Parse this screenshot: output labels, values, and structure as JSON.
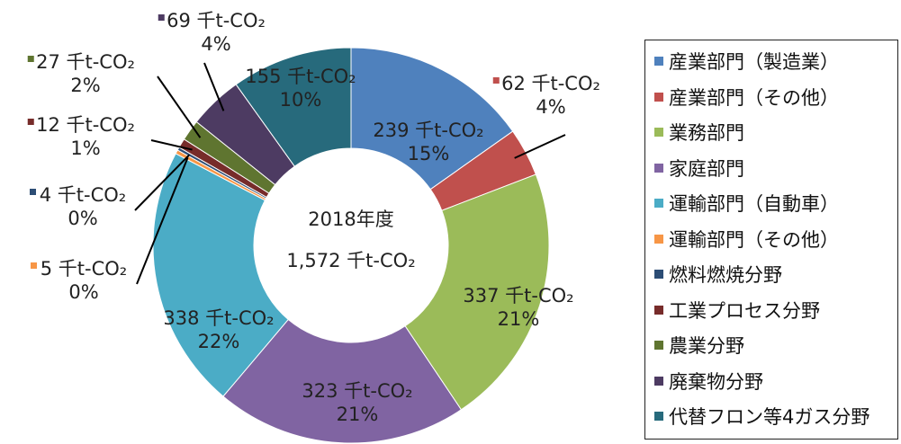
{
  "chart_data": {
    "type": "pie",
    "center_text": [
      "2018年度",
      "1,572 千t-CO₂"
    ],
    "unit": "千t-CO₂",
    "legend_position": "right",
    "slices": [
      {
        "name": "産業部門（製造業）",
        "value": 239,
        "percent": "15%",
        "color": "#4f81bd"
      },
      {
        "name": "産業部門（その他）",
        "value": 62,
        "percent": "4%",
        "color": "#c0504d"
      },
      {
        "name": "業務部門",
        "value": 337,
        "percent": "21%",
        "color": "#9bbb59"
      },
      {
        "name": "家庭部門",
        "value": 323,
        "percent": "21%",
        "color": "#8064a2"
      },
      {
        "name": "運輸部門（自動車）",
        "value": 338,
        "percent": "22%",
        "color": "#4bacc6"
      },
      {
        "name": "運輸部門（その他）",
        "value": 5,
        "percent": "0%",
        "color": "#f79646"
      },
      {
        "name": "燃料燃焼分野",
        "value": 4,
        "percent": "0%",
        "color": "#2c4d75"
      },
      {
        "name": "工業プロセス分野",
        "value": 12,
        "percent": "1%",
        "color": "#772c2a"
      },
      {
        "name": "農業分野",
        "value": 27,
        "percent": "2%",
        "color": "#5f7530"
      },
      {
        "name": "廃棄物分野",
        "value": 69,
        "percent": "4%",
        "color": "#4d3b62"
      },
      {
        "name": "代替フロン等4ガス分野",
        "value": 155,
        "percent": "10%",
        "color": "#276a7c"
      }
    ]
  }
}
